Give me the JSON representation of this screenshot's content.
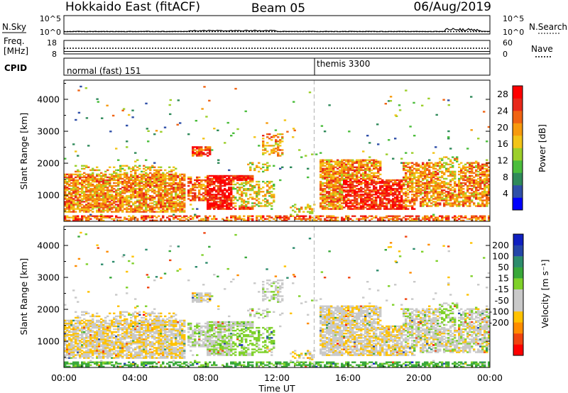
{
  "header": {
    "station": "Hokkaido East (fitACF)",
    "beam": "Beam 05",
    "date": "06/Aug/2019"
  },
  "top_strip": {
    "left_label": "N.Sky",
    "left_ticks": [
      "10^5",
      "10^0"
    ],
    "right_ticks": [
      "10^5",
      "10^0"
    ],
    "right_label": "N.Search",
    "freq_label_1": "Freq.",
    "freq_label_2": "[MHz]",
    "freq_ticks": [
      "18",
      "8"
    ],
    "nave_ticks": [
      "60",
      "0"
    ],
    "nave_label": "Nave",
    "cpid_label": "CPID",
    "cpid_modes": [
      {
        "name": "normal (fast) 151",
        "start_hour": 0
      },
      {
        "name": "themis 3300",
        "start_hour": 14.1
      }
    ]
  },
  "chart_data": [
    {
      "type": "heatmap",
      "title": "",
      "xlabel": "",
      "ylabel": "Slant Range [km]",
      "x_range_hours": [
        0,
        24
      ],
      "xticks": [
        "00:00",
        "04:00",
        "08:00",
        "12:00",
        "16:00",
        "20:00",
        "00:00"
      ],
      "ylim": [
        180,
        4600
      ],
      "yticks": [
        1000,
        2000,
        3000,
        4000
      ],
      "colorbar": {
        "label": "Power [dB]",
        "ticks": [
          "28",
          "24",
          "20",
          "16",
          "12",
          "8",
          "4"
        ],
        "range": [
          0,
          30
        ],
        "colors": [
          "#0000ff",
          "#2f4fa8",
          "#2f8a5a",
          "#4bbd3c",
          "#9ccf2a",
          "#f2c417",
          "#f79a0d",
          "#f06312",
          "#e8281a",
          "#ff0000"
        ]
      },
      "mode_change_hour": 14.1
    },
    {
      "type": "heatmap",
      "title": "",
      "xlabel": "Time UT",
      "ylabel": "Slant Range [km]",
      "x_range_hours": [
        0,
        24
      ],
      "xticks": [
        "00:00",
        "04:00",
        "08:00",
        "12:00",
        "16:00",
        "20:00",
        "00:00"
      ],
      "ylim": [
        180,
        4600
      ],
      "yticks": [
        1000,
        2000,
        3000,
        4000
      ],
      "colorbar": {
        "label": "Velocity [m s⁻¹]",
        "ticks": [
          "200",
          "100",
          "50",
          "15",
          "-15",
          "-50",
          "-100",
          "-200"
        ],
        "range": [
          -250,
          250
        ],
        "colors": [
          "#ff0000",
          "#f04410",
          "#ff8c00",
          "#ffc200",
          "#c9c9c9",
          "#c9c9c9",
          "#7fd12a",
          "#39a83a",
          "#2d8c6c",
          "#2546a8",
          "#1020c0"
        ]
      },
      "mode_change_hour": 14.1
    }
  ]
}
